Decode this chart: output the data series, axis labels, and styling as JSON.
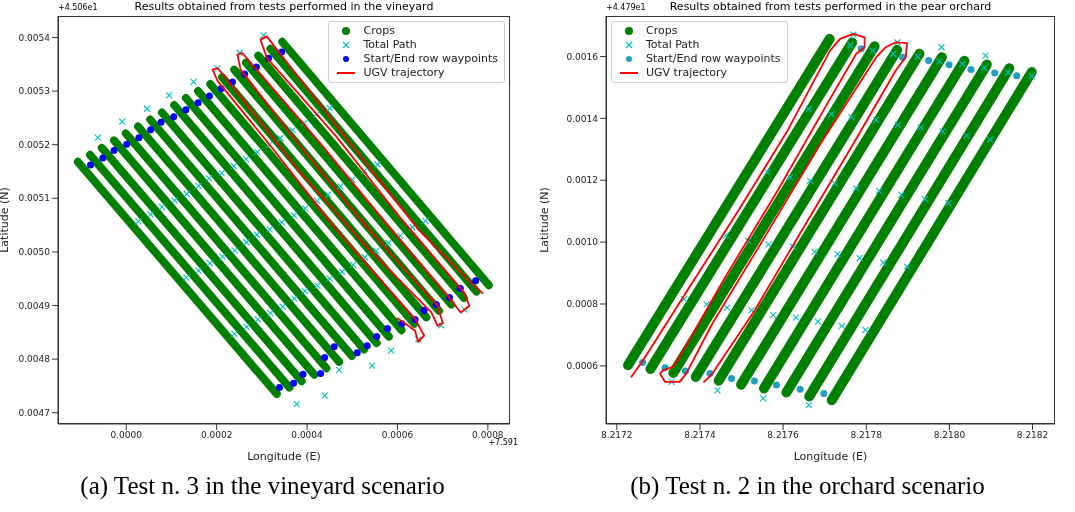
{
  "chart_data": [
    {
      "type": "scatter",
      "title": "Results obtained from tests performed in the vineyard",
      "xlabel": "Longitude (E)",
      "ylabel": "Latitude (N)",
      "legend": "top right",
      "xlim": [
        -0.000151,
        0.000849
      ],
      "ylim": [
        0.004679,
        0.00544
      ],
      "xticks": [
        {
          "value": 0,
          "label": "0.0000"
        },
        {
          "value": 0.0002,
          "label": "0.0002"
        },
        {
          "value": 0.0004,
          "label": "0.0004"
        },
        {
          "value": 0.0006,
          "label": "0.0006"
        },
        {
          "value": 0.0008,
          "label": "0.0008"
        }
      ],
      "yticks": [
        {
          "value": 0.0047,
          "label": "0.0047"
        },
        {
          "value": 0.0048,
          "label": "0.0048"
        },
        {
          "value": 0.0049,
          "label": "0.0049"
        },
        {
          "value": 0.005,
          "label": "0.0050"
        },
        {
          "value": 0.0051,
          "label": "0.0051"
        },
        {
          "value": 0.0052,
          "label": "0.0052"
        },
        {
          "value": 0.0053,
          "label": "0.0053"
        },
        {
          "value": 0.0054,
          "label": "0.0054"
        }
      ],
      "annotations": [
        "+4.506e1",
        "+7.591",
        "(a) Test n. 3 in the vineyard scenario"
      ],
      "series": [
        {
          "name": "Crops",
          "type": "line",
          "color": "#008000",
          "marker": "none",
          "x": [
            -0.000107,
            0.000333,
            null,
            -8e-05,
            0.000361,
            null,
            -5.4e-05,
            0.000388,
            null,
            -2.7e-05,
            0.000416,
            null,
            -1e-06,
            0.000443,
            null,
            2.6e-05,
            0.000471,
            null,
            5.3e-05,
            0.000499,
            null,
            7.9e-05,
            0.000526,
            null,
            0.000106,
            0.000554,
            null,
            0.000132,
            0.000581,
            null,
            0.000159,
            0.000609,
            null,
            0.000186,
            0.000637,
            null,
            0.000212,
            0.000664,
            null,
            0.000239,
            0.000692,
            null,
            0.000265,
            0.000719,
            null,
            0.000292,
            0.000747,
            null,
            0.000319,
            0.000775,
            null,
            0.000345,
            0.000802
          ],
          "values": [
            0.005168,
            0.004735,
            null,
            0.005181,
            0.004747,
            null,
            0.005194,
            0.004759,
            null,
            0.005208,
            0.004771,
            null,
            0.005221,
            0.004783,
            null,
            0.005234,
            0.004795,
            null,
            0.005247,
            0.004806,
            null,
            0.00526,
            0.004818,
            null,
            0.005274,
            0.00483,
            null,
            0.005287,
            0.004842,
            null,
            0.0053,
            0.004854,
            null,
            0.005313,
            0.004866,
            null,
            0.005326,
            0.004878,
            null,
            0.00534,
            0.00489,
            null,
            0.005353,
            0.004902,
            null,
            0.005366,
            0.004914,
            null,
            0.005379,
            0.004926,
            null,
            0.005392,
            0.004938
          ]
        },
        {
          "name": "Total Path",
          "color": "#00bfbf",
          "marker": "cross",
          "x": [
            2.7e-05,
            0.000133,
            0.000239,
            5.4e-05,
            0.00016,
            0.000266,
            7.9e-05,
            0.000185,
            0.000291,
            0.000107,
            0.000213,
            0.000319,
            0.000134,
            0.00024,
            0.000346,
            0.00016,
            0.000266,
            0.000372,
            0.000183,
            0.000289,
            0.000395,
            0.000211,
            0.000317,
            0.000423,
            0.000238,
            0.000344,
            0.00045,
            0.000265,
            0.000371,
            0.000477,
            0.00029,
            0.000396,
            0.000502,
            0.000316,
            0.000422,
            0.000528,
            0.000341,
            0.000447,
            0.000553,
            0.000368,
            0.000474,
            0.00058,
            0.000394,
            0.0005,
            0.000606,
            0.000421,
            0.000527,
            0.000633,
            0.00045,
            0.000556,
            0.000662,
            -6.3e-05,
            -9e-06,
            4.6e-05,
            9.5e-05,
            0.000149,
            0.000202,
            0.000251,
            0.000304,
            0.000377,
            0.000439,
            0.000471,
            0.000544,
            0.000586,
            0.000646,
            0.000697,
            0.000748
          ],
          "values": [
            0.005057,
            0.004952,
            0.004847,
            0.00507,
            0.004965,
            0.00486,
            0.005084,
            0.004979,
            0.004874,
            0.005096,
            0.004991,
            0.004886,
            0.005108,
            0.005003,
            0.004898,
            0.005123,
            0.005018,
            0.004913,
            0.005137,
            0.005032,
            0.004927,
            0.005147,
            0.005042,
            0.004937,
            0.00516,
            0.005055,
            0.00495,
            0.005173,
            0.005068,
            0.004963,
            0.005186,
            0.005081,
            0.004976,
            0.0052,
            0.005095,
            0.00499,
            0.005212,
            0.005107,
            0.005002,
            0.005227,
            0.005122,
            0.005017,
            0.00524,
            0.005135,
            0.00503,
            0.005256,
            0.005151,
            0.005046,
            0.005268,
            0.005163,
            0.005058,
            0.005213,
            0.005243,
            0.005267,
            0.005292,
            0.005317,
            0.005342,
            0.005371,
            0.005404,
            0.004716,
            0.004732,
            0.00478,
            0.004788,
            0.004816,
            0.004837,
            0.004863,
            0.004893
          ]
        },
        {
          "name": "Start/End row waypoints",
          "color": "#0000ff",
          "marker": "circle",
          "x": [
            -7.9e-05,
            -5.2e-05,
            -2.7e-05,
            1e-06,
            2.8e-05,
            5.4e-05,
            7.7e-05,
            0.000105,
            0.000132,
            0.000159,
            0.000184,
            0.00021,
            0.000235,
            0.000262,
            0.000288,
            0.000315,
            0.000344,
            0.000339,
            0.00037,
            0.000391,
            0.00043,
            0.000439,
            0.00046,
            0.000511,
            0.000533,
            0.000554,
            0.000578,
            0.00061,
            0.000639,
            0.000659,
            0.000686,
            0.000715,
            0.000739,
            0.000773
          ],
          "values": [
            0.005162,
            0.005175,
            0.005189,
            0.005201,
            0.005213,
            0.005228,
            0.005242,
            0.005252,
            0.005265,
            0.005278,
            0.005291,
            0.005305,
            0.005317,
            0.005332,
            0.005345,
            0.005361,
            0.005373,
            0.004747,
            0.004755,
            0.004772,
            0.004773,
            0.004803,
            0.004823,
            0.004812,
            0.004825,
            0.004842,
            0.004857,
            0.004866,
            0.004874,
            0.004891,
            0.004902,
            0.004915,
            0.004932,
            0.004946
          ]
        },
        {
          "name": "UGV trajectory",
          "type": "line",
          "color": "#ff0000",
          "marker": "none",
          "x": [
            0.000601,
            0.000639,
            0.000646,
            0.000659,
            0.000639,
            0.000464,
            0.000319,
            0.000202,
            0.000191,
            0.000202,
            0.000217,
            0.000391,
            0.000537,
            0.000675,
            0.000689,
            0.0007,
            0.000689,
            0.000537,
            0.000391,
            0.000253,
            0.000246,
            0.000257,
            0.000275,
            0.000428,
            0.000573,
            0.000711,
            0.00074,
            0.000759,
            0.000748,
            0.000609,
            0.000464,
            0.000311,
            0.000297,
            0.000311,
            0.000333,
            0.0005,
            0.000646,
            0.000769,
            0.000788
          ],
          "values": [
            0.004876,
            0.004853,
            0.004832,
            0.004844,
            0.004875,
            0.005042,
            0.005198,
            0.005319,
            0.00534,
            0.005343,
            0.005328,
            0.005142,
            0.005005,
            0.004887,
            0.004862,
            0.004868,
            0.004899,
            0.005042,
            0.005191,
            0.00534,
            0.005368,
            0.005371,
            0.005353,
            0.005204,
            0.005055,
            0.004918,
            0.004887,
            0.004899,
            0.004924,
            0.005061,
            0.005216,
            0.005362,
            0.005396,
            0.005402,
            0.005378,
            0.005198,
            0.005042,
            0.004937,
            0.004923
          ]
        }
      ]
    },
    {
      "type": "scatter",
      "title": "Results obtained from tests performed in the pear orchard",
      "xlabel": "Longitude (E)",
      "ylabel": "Latitude (N)",
      "legend": "top left",
      "xlim": [
        8.217174,
        8.218254
      ],
      "ylim": [
        0.000412,
        0.001731
      ],
      "xticks": [
        {
          "value": 8.2172,
          "label": "8.2172"
        },
        {
          "value": 8.2174,
          "label": "8.2174"
        },
        {
          "value": 8.2176,
          "label": "8.2176"
        },
        {
          "value": 8.2178,
          "label": "8.2178"
        },
        {
          "value": 8.218,
          "label": "8.2180"
        },
        {
          "value": 8.2182,
          "label": "8.2182"
        }
      ],
      "yticks": [
        {
          "value": 0.0006,
          "label": "0.0006"
        },
        {
          "value": 0.0008,
          "label": "0.0008"
        },
        {
          "value": 0.001,
          "label": "0.0010"
        },
        {
          "value": 0.0012,
          "label": "0.0012"
        },
        {
          "value": 0.0014,
          "label": "0.0014"
        },
        {
          "value": 0.0016,
          "label": "0.0016"
        }
      ],
      "annotations": [
        "+4.479e1",
        "(b) Test n. 2 in the orchard scenario"
      ],
      "series": [
        {
          "name": "Crops",
          "type": "line",
          "color": "#008000",
          "marker": "none",
          "x": [
            8.217227,
            8.217712,
            null,
            8.217281,
            8.217766,
            null,
            8.217336,
            8.21782,
            null,
            8.21739,
            8.217874,
            null,
            8.217445,
            8.217928,
            null,
            8.217499,
            8.217982,
            null,
            8.217554,
            8.218036,
            null,
            8.217608,
            8.21809,
            null,
            8.217663,
            8.218144,
            null,
            8.217717,
            8.218198
          ],
          "values": [
            0.000602,
            0.001657,
            null,
            0.00059,
            0.001645,
            null,
            0.000577,
            0.001633,
            null,
            0.000564,
            0.001621,
            null,
            0.000552,
            0.001609,
            null,
            0.000539,
            0.001598,
            null,
            0.000527,
            0.001586,
            null,
            0.000514,
            0.001574,
            null,
            0.000501,
            0.001562,
            null,
            0.000489,
            0.00155
          ]
        },
        {
          "name": "Total Path",
          "color": "#00bfbf",
          "marker": "cross",
          "x": [
            8.217362,
            8.217462,
            8.217562,
            8.217662,
            8.217762,
            8.217416,
            8.217516,
            8.217616,
            8.217716,
            8.217816,
            8.217465,
            8.217565,
            8.217665,
            8.217765,
            8.217865,
            8.217524,
            8.217624,
            8.217724,
            8.217824,
            8.217924,
            8.217576,
            8.217676,
            8.217776,
            8.217876,
            8.217976,
            8.217631,
            8.217731,
            8.217831,
            8.217931,
            8.218031,
            8.217684,
            8.217784,
            8.217884,
            8.217984,
            8.218084,
            8.217741,
            8.217841,
            8.217941,
            8.218041,
            8.218141,
            8.217798,
            8.217898,
            8.217998,
            8.218098,
            8.218198,
            8.217332,
            8.217442,
            8.217552,
            8.217662,
            8.217769,
            8.217875,
            8.217981,
            8.218087
          ],
          "values": [
            0.000816,
            0.001021,
            0.001226,
            0.001431,
            0.001636,
            0.000799,
            0.001004,
            0.001209,
            0.001414,
            0.001619,
            0.000788,
            0.000993,
            0.001198,
            0.001403,
            0.001608,
            0.00078,
            0.000985,
            0.00119,
            0.001395,
            0.0016,
            0.000764,
            0.000969,
            0.001174,
            0.001379,
            0.001584,
            0.000756,
            0.000961,
            0.001166,
            0.001371,
            0.001576,
            0.000743,
            0.000948,
            0.001153,
            0.001358,
            0.001563,
            0.000729,
            0.000934,
            0.001139,
            0.001344,
            0.001549,
            0.000716,
            0.000921,
            0.001126,
            0.001331,
            0.001536,
            0.000548,
            0.000521,
            0.000495,
            0.000473,
            0.001671,
            0.001646,
            0.00163,
            0.001603
          ]
        },
        {
          "name": "Start/End row waypoints",
          "color": "#1f9fbf",
          "marker": "circle",
          "x": [
            8.217262,
            8.217316,
            8.217365,
            8.217424,
            8.217476,
            8.217531,
            8.217584,
            8.217641,
            8.217698,
            8.217788,
            8.217887,
            8.21795,
            8.217999,
            8.218052,
            8.218109,
            8.218162
          ],
          "values": [
            0.000611,
            0.000594,
            0.000583,
            0.000575,
            0.000559,
            0.000551,
            0.000538,
            0.000524,
            0.000511,
            0.001625,
            0.001598,
            0.001587,
            0.001573,
            0.001558,
            0.001547,
            0.001538
          ]
        },
        {
          "name": "UGV trajectory",
          "type": "line",
          "color": "#ff0000",
          "marker": "none",
          "x": [
            8.217235,
            8.217261,
            8.217375,
            8.217493,
            8.217611,
            8.217713,
            8.217737,
            8.217769,
            8.217796,
            8.217796,
            8.217776,
            8.217706,
            8.217587,
            8.217461,
            8.217351,
            8.217335,
            8.217312,
            8.217304,
            8.217316,
            8.217351,
            8.217367,
            8.21743,
            8.217556,
            8.21769,
            8.217824,
            8.217847,
            8.217871,
            8.217898,
            8.217895,
            8.217871,
            8.217769,
            8.21765,
            8.217532,
            8.21743,
            8.21741
          ],
          "values": [
            0.000565,
            0.000613,
            0.000855,
            0.001103,
            0.001361,
            0.001619,
            0.001657,
            0.001673,
            0.001662,
            0.00163,
            0.001609,
            0.001447,
            0.001167,
            0.000887,
            0.000629,
            0.000597,
            0.000586,
            0.000575,
            0.000548,
            0.000548,
            0.000575,
            0.000737,
            0.001017,
            0.001318,
            0.001598,
            0.00163,
            0.001646,
            0.001643,
            0.001598,
            0.001555,
            0.001318,
            0.001049,
            0.00078,
            0.000575,
            0.000548
          ]
        }
      ]
    }
  ]
}
